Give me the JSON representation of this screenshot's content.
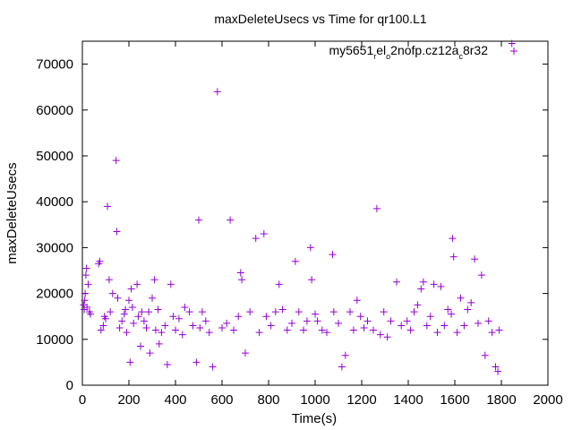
{
  "chart_data": {
    "type": "scatter",
    "title": "maxDeleteUsecs vs Time for qr100.L1",
    "xlabel": "Time(s)",
    "ylabel": "maxDeleteUsecs",
    "xlim": [
      0,
      2000
    ],
    "ylim": [
      0,
      75000
    ],
    "xticks": [
      0,
      200,
      400,
      600,
      800,
      1000,
      1200,
      1400,
      1600,
      1800,
      2000
    ],
    "yticks": [
      0,
      10000,
      20000,
      30000,
      40000,
      50000,
      60000,
      70000
    ],
    "grid": false,
    "legend_position": "top-right",
    "legend_parts": [
      {
        "text": "my5651",
        "sub": false
      },
      {
        "text": "r",
        "sub": true
      },
      {
        "text": "el",
        "sub": false
      },
      {
        "text": "o",
        "sub": true
      },
      {
        "text": "2nofp.cz12a",
        "sub": false
      },
      {
        "text": "c",
        "sub": true
      },
      {
        "text": "8r32",
        "sub": false
      }
    ],
    "marker": "+",
    "color": "#9400d3",
    "series": [
      {
        "name": "my5651_rel_o2nofp.cz12a_c8r32",
        "points": [
          [
            5,
            17500
          ],
          [
            8,
            16500
          ],
          [
            10,
            18500
          ],
          [
            12,
            20000
          ],
          [
            15,
            24000
          ],
          [
            18,
            25500
          ],
          [
            20,
            17000
          ],
          [
            25,
            22000
          ],
          [
            30,
            16000
          ],
          [
            35,
            15500
          ],
          [
            70,
            26500
          ],
          [
            75,
            27000
          ],
          [
            80,
            12000
          ],
          [
            90,
            13000
          ],
          [
            95,
            15000
          ],
          [
            100,
            14500
          ],
          [
            108,
            39000
          ],
          [
            115,
            23000
          ],
          [
            120,
            16000
          ],
          [
            130,
            20000
          ],
          [
            145,
            49000
          ],
          [
            148,
            33500
          ],
          [
            152,
            19000
          ],
          [
            160,
            12500
          ],
          [
            170,
            14000
          ],
          [
            180,
            15500
          ],
          [
            185,
            16500
          ],
          [
            190,
            11500
          ],
          [
            200,
            18500
          ],
          [
            205,
            5000
          ],
          [
            210,
            21000
          ],
          [
            215,
            17000
          ],
          [
            220,
            13500
          ],
          [
            235,
            22000
          ],
          [
            240,
            15000
          ],
          [
            250,
            8500
          ],
          [
            255,
            16000
          ],
          [
            265,
            14000
          ],
          [
            275,
            12500
          ],
          [
            285,
            16000
          ],
          [
            290,
            7000
          ],
          [
            300,
            19000
          ],
          [
            310,
            23000
          ],
          [
            315,
            12000
          ],
          [
            325,
            16500
          ],
          [
            330,
            9000
          ],
          [
            340,
            11500
          ],
          [
            355,
            13000
          ],
          [
            365,
            4500
          ],
          [
            380,
            22000
          ],
          [
            390,
            15000
          ],
          [
            400,
            12000
          ],
          [
            415,
            14500
          ],
          [
            430,
            11000
          ],
          [
            440,
            17000
          ],
          [
            460,
            16000
          ],
          [
            475,
            13000
          ],
          [
            490,
            5000
          ],
          [
            500,
            36000
          ],
          [
            505,
            12500
          ],
          [
            515,
            16000
          ],
          [
            530,
            14000
          ],
          [
            545,
            11500
          ],
          [
            560,
            4000
          ],
          [
            580,
            64000
          ],
          [
            600,
            12500
          ],
          [
            620,
            13500
          ],
          [
            635,
            36000
          ],
          [
            650,
            12000
          ],
          [
            670,
            15000
          ],
          [
            680,
            24500
          ],
          [
            685,
            23000
          ],
          [
            700,
            7000
          ],
          [
            720,
            16000
          ],
          [
            745,
            32000
          ],
          [
            760,
            11500
          ],
          [
            780,
            33000
          ],
          [
            790,
            15000
          ],
          [
            810,
            13000
          ],
          [
            830,
            16000
          ],
          [
            845,
            22000
          ],
          [
            860,
            16500
          ],
          [
            880,
            12000
          ],
          [
            900,
            13500
          ],
          [
            915,
            27000
          ],
          [
            930,
            16000
          ],
          [
            950,
            12000
          ],
          [
            965,
            14000
          ],
          [
            980,
            30000
          ],
          [
            985,
            23000
          ],
          [
            1000,
            15500
          ],
          [
            1010,
            14000
          ],
          [
            1030,
            12000
          ],
          [
            1050,
            11500
          ],
          [
            1075,
            28500
          ],
          [
            1080,
            16000
          ],
          [
            1100,
            13500
          ],
          [
            1115,
            4000
          ],
          [
            1130,
            6500
          ],
          [
            1150,
            16000
          ],
          [
            1165,
            12000
          ],
          [
            1180,
            18500
          ],
          [
            1195,
            15000
          ],
          [
            1210,
            12500
          ],
          [
            1225,
            14000
          ],
          [
            1250,
            12000
          ],
          [
            1265,
            38500
          ],
          [
            1280,
            11000
          ],
          [
            1295,
            16000
          ],
          [
            1310,
            10500
          ],
          [
            1325,
            14000
          ],
          [
            1350,
            22500
          ],
          [
            1370,
            13000
          ],
          [
            1395,
            14000
          ],
          [
            1410,
            12000
          ],
          [
            1425,
            16000
          ],
          [
            1440,
            17500
          ],
          [
            1455,
            21000
          ],
          [
            1465,
            22500
          ],
          [
            1480,
            13000
          ],
          [
            1495,
            15000
          ],
          [
            1510,
            22000
          ],
          [
            1525,
            11500
          ],
          [
            1540,
            21500
          ],
          [
            1555,
            13000
          ],
          [
            1570,
            16500
          ],
          [
            1585,
            15500
          ],
          [
            1590,
            32000
          ],
          [
            1595,
            28000
          ],
          [
            1610,
            11500
          ],
          [
            1625,
            19000
          ],
          [
            1640,
            13000
          ],
          [
            1655,
            16500
          ],
          [
            1670,
            18000
          ],
          [
            1685,
            27500
          ],
          [
            1700,
            13500
          ],
          [
            1715,
            24000
          ],
          [
            1730,
            6500
          ],
          [
            1745,
            14000
          ],
          [
            1760,
            11500
          ],
          [
            1775,
            4000
          ],
          [
            1785,
            3000
          ],
          [
            1790,
            12000
          ],
          [
            1845,
            74500
          ]
        ]
      }
    ]
  }
}
